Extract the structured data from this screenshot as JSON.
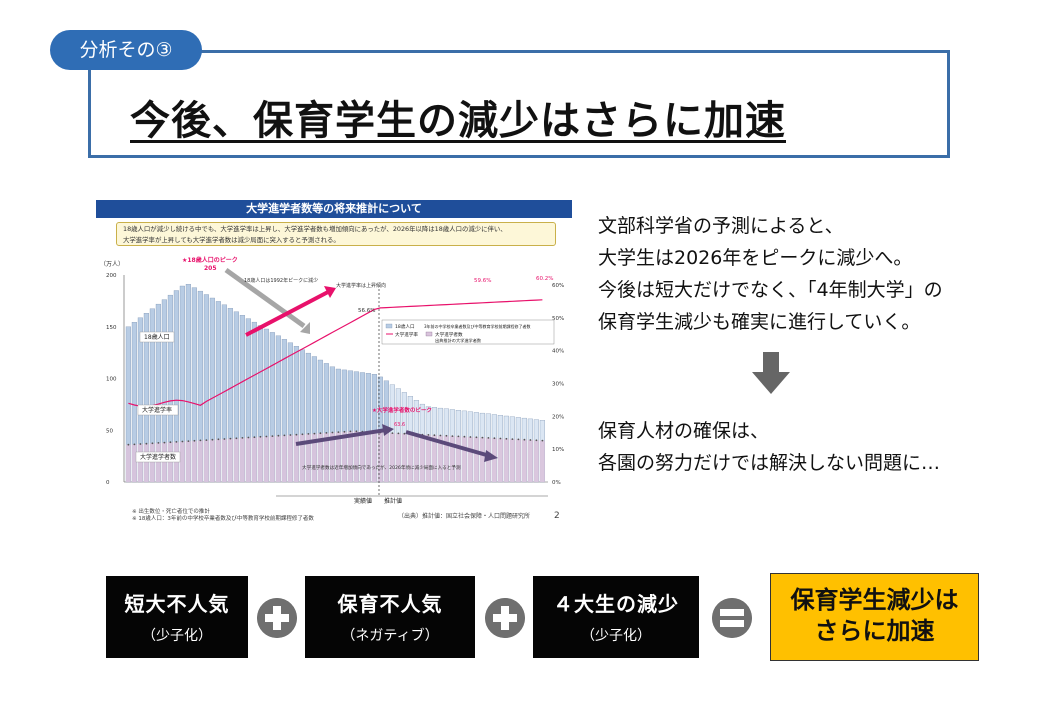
{
  "header": {
    "section_label": "分析その③",
    "title": "今後、保育学生の減少はさらに加速"
  },
  "chart": {
    "header_title": "大学進学者数等の将来推計について",
    "note_line1": "18歳人口が減少し続ける中でも、大学進学率は上昇し、大学進学者数も増加傾向にあったが、2026年以降は18歳人口の減少に伴い、",
    "note_line2": "大学進学率が上昇しても大学進学者数は減少局面に突入すると予測される。",
    "unit_label": "（万人）",
    "label_pop18": "18歳人口",
    "label_rate": "大学進学率",
    "label_enrollees": "大学進学者数",
    "annot_pop_peak": "★18歳人口のピーク",
    "annot_pop_peak_value": "205",
    "annot_1992": "18歳人口は1992年ピークに減少",
    "annot_rate_rise": "大学進学率は上昇傾向",
    "annot_enroll_peak": "★大学進学者数のピーク",
    "annot_enroll_peak_value": "63.6",
    "annot_enroll_decline": "大学進学者数は近年増加傾向であったが、2026年頃に減少局面に入ると予測",
    "rate_labels": [
      "56.6%",
      "59.6%",
      "60.2%"
    ],
    "legend_bar": "18歳人口",
    "legend_bar_note": "3年前の中学校卒業者数及び中等教育学校前期課程修了者数",
    "legend_rate": "大学進学率",
    "legend_enroll": "大学進学者数",
    "legend_enroll_note": "出典推計の大学進学者数",
    "actual_label": "実績値",
    "estimate_label": "推計値",
    "footer_line1": "※ 出生数位・死亡者位での推計",
    "footer_line2": "※ 18歳人口：3年前の中学校卒業者数及び中等教育学校前期課程修了者数",
    "source": "（出典）推計値：国立社会保障・人口問題研究所",
    "page_number": "2",
    "icons": {
      "marker": "star-icon"
    },
    "colors": {
      "population": "#b8cce4",
      "enrollees": "#d9c3dc",
      "rate": "#e8116b",
      "header": "#1f4e9a"
    }
  },
  "explanation": {
    "lines": [
      "文部科学省の予測によると、",
      "大学生は2026年をピークに減少へ。",
      "今後は短大だけでなく、「4年制大学」の",
      "保育学生減少も確実に進行していく。"
    ],
    "arrow_icon": "down-arrow-icon",
    "conclusion_lines": [
      "保育人材の確保は、",
      "各園の努力だけでは解決しない問題に…"
    ]
  },
  "equation": {
    "items": [
      {
        "title": "短大不人気",
        "sub": "（少子化）"
      },
      {
        "title": "保育不人気",
        "sub": "（ネガティブ）"
      },
      {
        "title": "４大生の減少",
        "sub": "（少子化）"
      }
    ],
    "plus_icon": "plus-circle-icon",
    "equals_icon": "equals-circle-icon",
    "result_line1": "保育学生減少は",
    "result_line2": "さらに加速",
    "colors": {
      "box": "#050505",
      "result": "#ffc000",
      "operator": "#6f6f6f"
    }
  }
}
